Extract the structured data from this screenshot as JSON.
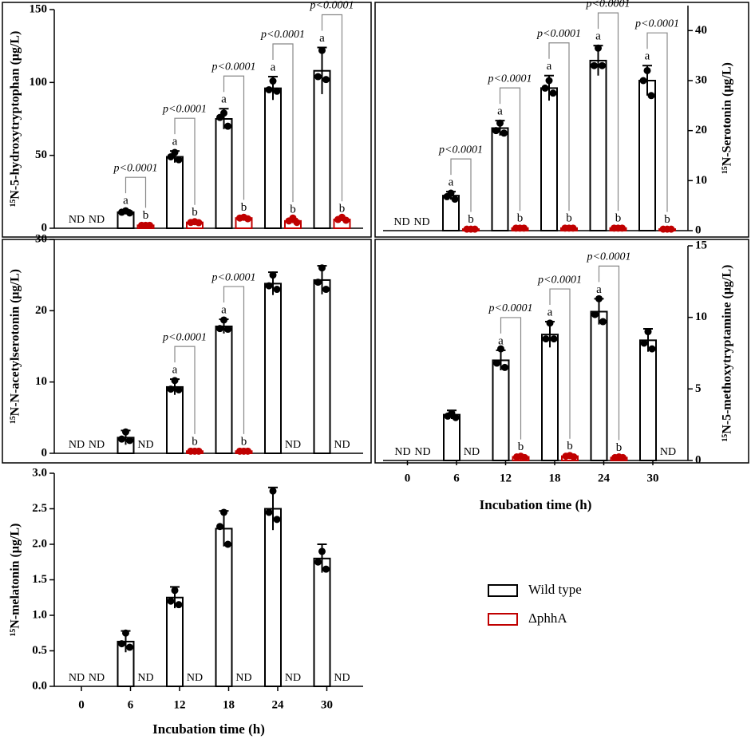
{
  "legend": [
    {
      "name": "Wild type",
      "color": "#000000"
    },
    {
      "name": "ΔphhA",
      "color": "#c00000"
    }
  ],
  "chart_data": [
    {
      "type": "bar",
      "ylabel": "¹⁵N-5-hydroxytryptophan (μg/L)",
      "ylim": [
        0,
        150
      ],
      "yticks": [
        0,
        50,
        100,
        150
      ],
      "p_labels": [
        null,
        "p<0.0001",
        "p<0.0001",
        "p<0.0001",
        "p<0.0001",
        "p<0.0001"
      ],
      "series": [
        {
          "color": "#000000",
          "values": [
            null,
            11,
            49,
            75,
            96,
            108
          ],
          "errors": [
            null,
            1.5,
            4,
            7,
            8,
            16
          ],
          "value_labels": [
            "ND",
            null,
            null,
            null,
            null,
            null
          ],
          "letters": [
            null,
            "a",
            "a",
            "a",
            "a",
            "a"
          ],
          "points": [
            null,
            [
              12,
              11,
              10.5
            ],
            [
              52,
              49,
              47
            ],
            [
              79,
              76,
              70
            ],
            [
              101,
              95,
              94
            ],
            [
              122,
              104,
              102
            ]
          ]
        },
        {
          "color": "#c00000",
          "values": [
            null,
            2,
            4,
            7,
            5,
            6
          ],
          "errors": [
            null,
            0.5,
            0.5,
            1,
            1.5,
            1
          ],
          "value_labels": [
            "ND",
            null,
            null,
            null,
            null,
            null
          ],
          "letters": [
            null,
            "b",
            "b",
            "b",
            "b",
            "b"
          ],
          "points": [
            null,
            [
              2,
              2,
              2
            ],
            [
              4.5,
              4,
              3.8
            ],
            [
              7.5,
              7,
              6.5
            ],
            [
              7,
              5,
              4
            ],
            [
              7.5,
              6,
              5.5
            ]
          ]
        }
      ]
    },
    {
      "type": "bar",
      "ylabel": "¹⁵N-Serotonin (μg/L)",
      "ylim": [
        0,
        45
      ],
      "yticks": [
        0,
        10,
        20,
        30,
        40
      ],
      "p_labels": [
        null,
        "p<0.0001",
        "p<0.0001",
        "p<0.0001",
        "p<0.0001",
        "p<0.0001"
      ],
      "series": [
        {
          "color": "#000000",
          "values": [
            null,
            7,
            20.5,
            28.5,
            34,
            30
          ],
          "errors": [
            null,
            0.8,
            1.5,
            2.5,
            3,
            3
          ],
          "value_labels": [
            "ND",
            null,
            null,
            null,
            null,
            null
          ],
          "letters": [
            null,
            "a",
            "a",
            "a",
            "a",
            "a"
          ],
          "points": [
            null,
            [
              7.5,
              6.8,
              6.3
            ],
            [
              21.5,
              20,
              19.5
            ],
            [
              30,
              28.5,
              27.5
            ],
            [
              36.5,
              33,
              33
            ],
            [
              32,
              30,
              27
            ]
          ]
        },
        {
          "color": "#c00000",
          "values": [
            null,
            0.3,
            0.5,
            0.5,
            0.5,
            0.3
          ],
          "errors": [
            null,
            0.1,
            0.1,
            0.1,
            0.1,
            0.1
          ],
          "value_labels": [
            "ND",
            null,
            null,
            null,
            null,
            null
          ],
          "letters": [
            null,
            "b",
            "b",
            "b",
            "b",
            "b"
          ],
          "points": [
            null,
            [
              0.3,
              0.3,
              0.3
            ],
            [
              0.5,
              0.5,
              0.5
            ],
            [
              0.5,
              0.5,
              0.5
            ],
            [
              0.5,
              0.5,
              0.5
            ],
            [
              0.3,
              0.3,
              0.3
            ]
          ]
        }
      ]
    },
    {
      "type": "bar",
      "ylabel": "¹⁵N-N-acetylserotonin (μg/L)",
      "ylim": [
        0,
        30
      ],
      "yticks": [
        0,
        10,
        20,
        30
      ],
      "p_labels": [
        null,
        null,
        "p<0.0001",
        "p<0.0001",
        null,
        null
      ],
      "series": [
        {
          "color": "#000000",
          "values": [
            null,
            2.2,
            9.3,
            17.8,
            23.8,
            24.3
          ],
          "errors": [
            null,
            1,
            1.1,
            1,
            1.6,
            2
          ],
          "value_labels": [
            "ND",
            null,
            null,
            null,
            null,
            null
          ],
          "letters": [
            null,
            null,
            "a",
            "a",
            null,
            null
          ],
          "points": [
            null,
            [
              3,
              2,
              1.8
            ],
            [
              10.2,
              9,
              8.9
            ],
            [
              18.7,
              17.5,
              17.4
            ],
            [
              25,
              23.5,
              23
            ],
            [
              26,
              24,
              23
            ]
          ]
        },
        {
          "color": "#c00000",
          "values": [
            null,
            null,
            0.3,
            0.3,
            null,
            null
          ],
          "errors": [
            null,
            null,
            0.05,
            0.05,
            null,
            null
          ],
          "value_labels": [
            "ND",
            "ND",
            null,
            null,
            "ND",
            "ND"
          ],
          "letters": [
            null,
            null,
            "b",
            "b",
            null,
            null
          ],
          "points": [
            null,
            null,
            [
              0.3,
              0.3,
              0.3
            ],
            [
              0.3,
              0.3,
              0.3
            ],
            null,
            null
          ]
        }
      ]
    },
    {
      "type": "bar",
      "ylabel": "¹⁵N-5-methoxytryptamine (μg/L)",
      "xlabel": "Incubation time (h)",
      "categories": [
        "0",
        "6",
        "12",
        "18",
        "24",
        "30"
      ],
      "ylim": [
        0,
        15
      ],
      "yticks": [
        0,
        5,
        10,
        15
      ],
      "p_labels": [
        null,
        null,
        "p<0.0001",
        "p<0.0001",
        "p<0.0001",
        null
      ],
      "series": [
        {
          "color": "#000000",
          "values": [
            null,
            3.2,
            7,
            8.8,
            10.4,
            8.4
          ],
          "errors": [
            null,
            0.3,
            0.7,
            0.9,
            0.9,
            0.8
          ],
          "value_labels": [
            "ND",
            null,
            null,
            null,
            null,
            null
          ],
          "letters": [
            null,
            null,
            "a",
            "a",
            "a",
            null
          ],
          "points": [
            null,
            [
              3.3,
              3.1,
              3
            ],
            [
              7.8,
              6.8,
              6.5
            ],
            [
              9.6,
              8.5,
              8.5
            ],
            [
              11.3,
              10.2,
              9.7
            ],
            [
              9,
              8.2,
              7.8
            ]
          ]
        },
        {
          "color": "#c00000",
          "values": [
            null,
            null,
            0.25,
            0.3,
            0.2,
            null
          ],
          "errors": [
            null,
            null,
            0.05,
            0.05,
            0.05,
            null
          ],
          "value_labels": [
            "ND",
            "ND",
            null,
            null,
            null,
            "ND"
          ],
          "letters": [
            null,
            null,
            "b",
            "b",
            "b",
            null
          ],
          "points": [
            null,
            null,
            [
              0.3,
              0.25,
              0.2
            ],
            [
              0.35,
              0.3,
              0.25
            ],
            [
              0.25,
              0.2,
              0.2
            ],
            null
          ]
        }
      ]
    },
    {
      "type": "bar",
      "ylabel": "¹⁵N-melatonin (μg/L)",
      "xlabel": "Incubation time (h)",
      "categories": [
        "0",
        "6",
        "12",
        "18",
        "24",
        "30"
      ],
      "ylim": [
        0,
        3
      ],
      "yticks": [
        {
          "value": 0,
          "label": "0.0"
        },
        0.5,
        {
          "value": 1,
          "label": "1.0"
        },
        1.5,
        {
          "value": 2,
          "label": "2.0"
        },
        2.5,
        {
          "value": 3,
          "label": "3.0"
        }
      ],
      "p_labels": [
        null,
        null,
        null,
        null,
        null,
        null
      ],
      "series": [
        {
          "color": "#000000",
          "values": [
            null,
            0.63,
            1.25,
            2.22,
            2.5,
            1.8
          ],
          "errors": [
            null,
            0.15,
            0.15,
            0.25,
            0.3,
            0.2
          ],
          "value_labels": [
            "ND",
            null,
            null,
            null,
            null,
            null
          ],
          "letters": [
            null,
            null,
            null,
            null,
            null,
            null
          ],
          "points": [
            null,
            [
              0.75,
              0.6,
              0.55
            ],
            [
              1.35,
              1.2,
              1.15
            ],
            [
              2.45,
              2.25,
              2
            ],
            [
              2.75,
              2.45,
              2.35
            ],
            [
              1.9,
              1.75,
              1.65
            ]
          ]
        },
        {
          "color": "#c00000",
          "values": [
            null,
            null,
            null,
            null,
            null,
            null
          ],
          "errors": [
            null,
            null,
            null,
            null,
            null,
            null
          ],
          "value_labels": [
            "ND",
            "ND",
            "ND",
            "ND",
            "ND",
            "ND"
          ],
          "letters": [
            null,
            null,
            null,
            null,
            null,
            null
          ],
          "points": [
            null,
            null,
            null,
            null,
            null,
            null
          ]
        }
      ]
    }
  ]
}
